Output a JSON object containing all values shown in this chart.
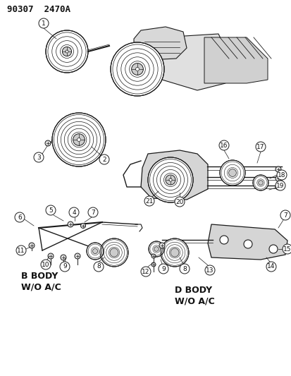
{
  "title": "90307  2470A",
  "bg_color": "#ffffff",
  "line_color": "#1a1a1a",
  "text_color": "#111111",
  "label_b_body": "B BODY\nW/O A/C",
  "label_d_body": "D BODY\nW/O A/C",
  "fig_width": 4.14,
  "fig_height": 5.33,
  "dpi": 100
}
